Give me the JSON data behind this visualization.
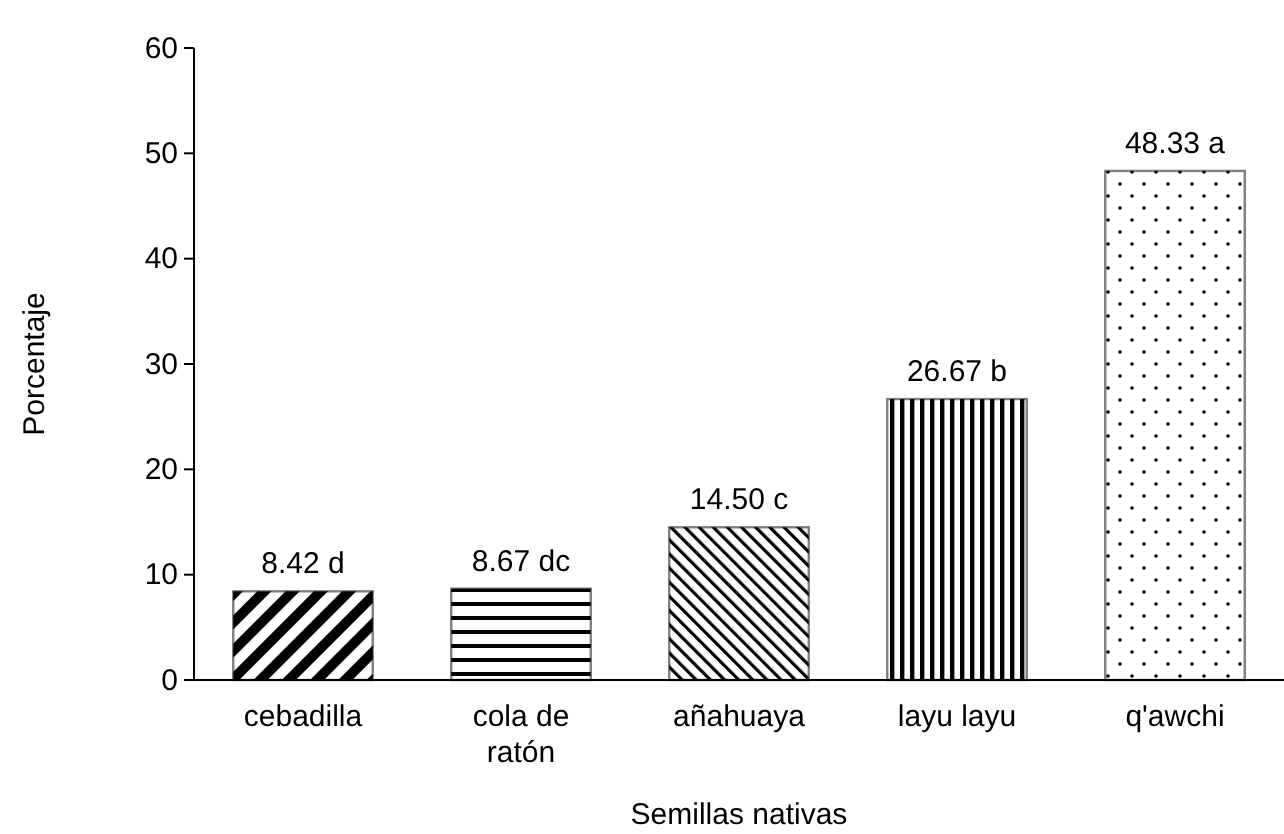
{
  "chart_data": {
    "type": "bar",
    "xlabel": "Semillas nativas",
    "ylabel": "Porcentaje",
    "categories": [
      "cebadilla",
      "cola de ratón",
      "añahuaya",
      "layu layu",
      "q'awchi"
    ],
    "values": [
      8.42,
      8.67,
      14.5,
      26.67,
      48.33
    ],
    "value_labels": [
      "8.42 d",
      "8.67 dc",
      "14.50 c",
      "26.67 b",
      "48.33 a"
    ],
    "color": "#000000",
    "ylim": [
      0,
      60
    ],
    "yticks": [
      0,
      10,
      20,
      30,
      40,
      50,
      60
    ],
    "grid": false
  }
}
